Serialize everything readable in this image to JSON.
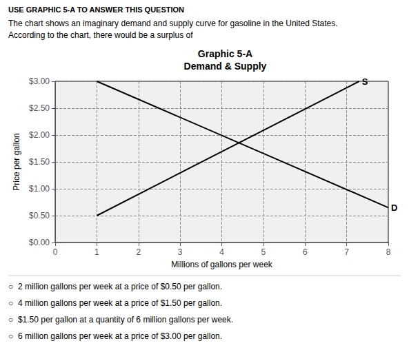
{
  "chart_data": {
    "type": "line",
    "title": "Graphic 5-A",
    "subtitle": "Demand & Supply",
    "xlabel": "Millions of gallons per week",
    "ylabel": "Price per gallon",
    "xlim": [
      0,
      8
    ],
    "ylim": [
      0.0,
      3.0
    ],
    "xticks": [
      0,
      1,
      2,
      3,
      4,
      5,
      6,
      7,
      8
    ],
    "yticks": [
      {
        "value": 0.0,
        "label": "$0.00"
      },
      {
        "value": 0.5,
        "label": "$0.50"
      },
      {
        "value": 1.0,
        "label": "$1.00"
      },
      {
        "value": 1.5,
        "label": "$1.50"
      },
      {
        "value": 2.0,
        "label": "$2.00"
      },
      {
        "value": 2.5,
        "label": "$2.50"
      },
      {
        "value": 3.0,
        "label": "$3.00"
      }
    ],
    "grid": true,
    "series": [
      {
        "name": "S",
        "color": "#000000",
        "x": [
          1,
          7.3
        ],
        "values": [
          0.5,
          3.0
        ]
      },
      {
        "name": "D",
        "color": "#000000",
        "x": [
          1,
          8
        ],
        "values": [
          3.0,
          0.65
        ]
      }
    ],
    "annotations": [
      "USE GRAPHIC 5-A TO ANSWER THIS QUESTION",
      "The chart shows an imaginary demand and supply curve for gasoline in the United States.",
      "According to the chart, there would be a surplus of",
      "○  2 million gallons per week at a price of $0.50 per gallon.",
      "○  4 million gallons per week at a price of $1.50 per gallon.",
      "○  $1.50 per gallon at a quantity of 6 million gallons per week.",
      "○  6 million gallons per week at a price of $3.00 per gallon."
    ]
  }
}
